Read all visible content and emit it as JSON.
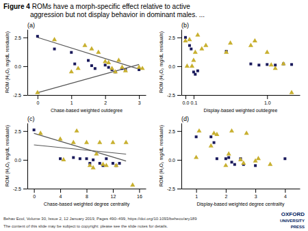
{
  "title": "Figure 4",
  "subtitle": " ROMs have a morph-specific effect relative to active\naggression but not display behavior in dominant males. ...",
  "annotations": [
    "Behav Ecol, Volume 30, Issue 2, 12 January 2019, Pages 490–499, https://doi.org/10.1093/beheco/ary189",
    "The content of this slide may be subject to copyright: please see the slide notes for details.",
    "OXFORD",
    "UNIVERSITY",
    "PRESS"
  ],
  "chart_data": [
    {
      "type": "scatter",
      "title": "(a)",
      "xlabel": "Chase-based weighted outdegree",
      "ylabel": "ROM (H₂O₂ mg/dL residuals)",
      "xlim": [
        -0.3,
        3.2
      ],
      "xticks": [
        0,
        1,
        2,
        3
      ],
      "ylim": [
        -2.5,
        3.2
      ],
      "yticks": [
        -2.5,
        {
          "value": 0,
          "label": "0.0"
        },
        2.5
      ],
      "series": [
        {
          "marker": "square",
          "color": "#1a1a5c",
          "x": [
            0.0,
            0.5,
            1.0,
            1.1,
            1.5,
            1.6,
            1.7,
            2.0,
            2.1,
            2.2,
            2.3,
            2.5,
            2.6,
            3.0
          ],
          "values": [
            2.6,
            1.5,
            1.2,
            0.2,
            0.5,
            0.05,
            -0.2,
            0.1,
            -0.1,
            -0.3,
            -0.5,
            -0.2,
            -0.3,
            -0.3
          ]
        },
        {
          "marker": "triangle",
          "color": "#c8b030",
          "x": [
            0.0,
            0.5,
            1.0,
            1.2,
            1.4,
            1.6,
            1.8,
            2.0,
            2.1,
            2.2,
            2.3,
            2.4,
            2.5,
            2.6,
            3.0,
            3.1
          ],
          "values": [
            -2.3,
            2.3,
            -0.5,
            -0.2,
            1.8,
            1.5,
            1.2,
            0.4,
            0.3,
            -0.2,
            -0.5,
            0.5,
            -0.1,
            -0.4,
            -0.1,
            -0.2
          ]
        },
        {
          "type": "line",
          "color": "#555555",
          "x": [
            0.0,
            3.0
          ],
          "values": [
            2.5,
            -0.25
          ]
        },
        {
          "type": "line",
          "color": "#555555",
          "x": [
            0.0,
            3.0
          ],
          "values": [
            -2.3,
            0.15
          ]
        }
      ]
    },
    {
      "type": "scatter",
      "title": "(b)",
      "xlabel": "Display-based weighted outdegree",
      "ylabel": "ROM (H₂O₂ mg/dL residuals)",
      "xlim": [
        -0.05,
        1.4
      ],
      "xticks": [
        {
          "value": 0,
          "label": "0.0"
        },
        0.1,
        {
          "value": 1,
          "label": "1.0"
        }
      ],
      "ylim": [
        -2.5,
        3.2
      ],
      "yticks": [
        -2.5,
        {
          "value": 0,
          "label": "0.0"
        },
        2.5
      ],
      "series": [
        {
          "marker": "square",
          "color": "#1a1a5c",
          "x": [
            0.0,
            0.05,
            0.07,
            0.1,
            0.12,
            0.15,
            0.5,
            0.8,
            0.9,
            1.0,
            1.1,
            1.2,
            1.3
          ],
          "values": [
            2.5,
            1.8,
            1.5,
            -0.5,
            -0.7,
            -0.4,
            1.3,
            0.2,
            0.1,
            0.15,
            0.1,
            0.2,
            0.15
          ]
        },
        {
          "marker": "triangle",
          "color": "#c8b030",
          "x": [
            0.0,
            0.02,
            0.05,
            0.08,
            0.1,
            0.12,
            0.15,
            0.2,
            0.25,
            0.5,
            0.55,
            0.8,
            0.85,
            1.0,
            1.05,
            1.1,
            1.2,
            1.3
          ],
          "values": [
            2.2,
            0.0,
            2.3,
            0.0,
            0.5,
            1.2,
            2.7,
            1.5,
            1.8,
            1.2,
            2.0,
            1.8,
            2.2,
            1.2,
            0.1,
            -0.2,
            0.2,
            -2.3
          ]
        }
      ]
    },
    {
      "type": "scatter",
      "title": "(c)",
      "xlabel": "Chase-based weighted degree centrality",
      "ylabel": "ROM (H₂O₂ mg/dL residuals)",
      "xlim": [
        -1,
        17
      ],
      "xticks": [
        0,
        4,
        8,
        12,
        16
      ],
      "ylim": [
        -2.5,
        3.2
      ],
      "yticks": [
        -2.5,
        {
          "value": 0,
          "label": "0.0"
        },
        2.5
      ],
      "series": [
        {
          "marker": "square",
          "color": "#1a1a5c",
          "x": [
            0.0,
            4.0,
            6.0,
            7.0,
            8.0,
            8.5,
            9.0,
            10.0,
            10.5,
            11.0,
            12.0,
            12.5,
            13.0
          ],
          "values": [
            2.6,
            0.1,
            0.2,
            0.1,
            0.1,
            -0.3,
            0.0,
            -0.3,
            -0.5,
            0.1,
            -0.3,
            -0.5,
            -0.3
          ]
        },
        {
          "marker": "triangle",
          "color": "#c8b030",
          "x": [
            1.0,
            4.0,
            4.5,
            6.0,
            6.5,
            8.0,
            8.5,
            9.0,
            9.5,
            10.0,
            10.5,
            11.0,
            12.0,
            12.5,
            14.0,
            15.0
          ],
          "values": [
            2.3,
            1.8,
            0.0,
            1.5,
            2.5,
            1.5,
            -0.5,
            -0.7,
            0.5,
            1.5,
            -0.4,
            -0.5,
            1.5,
            -0.5,
            1.5,
            -2.2
          ]
        },
        {
          "type": "line",
          "color": "#555555",
          "x": [
            0.0,
            14.0
          ],
          "values": [
            2.3,
            -0.1
          ]
        },
        {
          "type": "line",
          "color": "#555555",
          "x": [
            0.0,
            14.0
          ],
          "values": [
            1.3,
            0.5
          ]
        }
      ]
    },
    {
      "type": "scatter",
      "title": "(d)",
      "xlabel": "Display-based weighted degree centrality",
      "ylabel": "ROM (H₂O₂ mg/dL residuals)",
      "xlim": [
        0.5,
        4.5
      ],
      "xticks": [
        1,
        2,
        3,
        4
      ],
      "ylim": [
        -2.5,
        3.2
      ],
      "yticks": [
        -2.5,
        {
          "value": 0,
          "label": "0.0"
        },
        2.5
      ],
      "series": [
        {
          "marker": "square",
          "color": "#1a1a5c",
          "x": [
            1.0,
            1.5,
            1.6,
            1.7,
            2.0,
            2.1,
            2.2,
            2.3,
            2.5,
            2.6,
            3.0,
            4.0
          ],
          "values": [
            2.0,
            2.0,
            1.5,
            0.1,
            0.1,
            0.2,
            -0.2,
            -0.4,
            0.1,
            -0.4,
            -0.5,
            0.1
          ]
        },
        {
          "marker": "triangle",
          "color": "#c8b030",
          "x": [
            1.0,
            1.1,
            1.5,
            1.6,
            1.7,
            2.0,
            2.1,
            2.2,
            2.5,
            2.6,
            2.7,
            3.0,
            3.1,
            3.5
          ],
          "values": [
            0.2,
            2.5,
            1.2,
            2.3,
            2.2,
            -0.5,
            0.5,
            2.5,
            0.0,
            -0.3,
            2.3,
            -0.1,
            0.1,
            -0.4
          ]
        }
      ]
    }
  ]
}
